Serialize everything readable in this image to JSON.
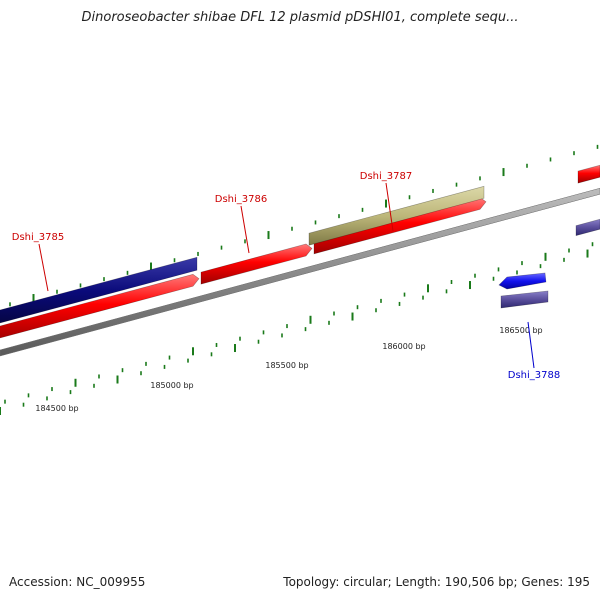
{
  "title": "Dinoroseobacter shibae DFL 12 plasmid pDSHI01, complete sequ...",
  "footer": {
    "accession": "Accession: NC_009955",
    "summary": "Topology: circular; Length: 190,506 bp; Genes: 195"
  },
  "colors": {
    "forward_gene": "#ff0000",
    "reverse_gene_dark": "#0a0a7a",
    "reverse_gene_purple": "#5a4f9c",
    "reverse_gene_blue": "#1111ee",
    "rna_gene": "#bdb77a",
    "backbone": "#8a8a8a",
    "tick_mark": "#1a7a1a",
    "label_forward": "#cc0000",
    "label_reverse": "#0000cc"
  },
  "genes": [
    {
      "label": "Dshi_3785",
      "strand": "reverse",
      "color_key": "reverse_gene_dark"
    },
    {
      "label": "Dshi_3786",
      "strand": "forward",
      "color_key": "forward_gene"
    },
    {
      "label": "Dshi_3787",
      "strand": "forward",
      "color_key": "rna_gene"
    },
    {
      "label": "Dshi_3788",
      "strand": "reverse",
      "color_key": "reverse_gene_blue"
    }
  ],
  "scale_labels": [
    "184500 bp",
    "185000 bp",
    "185500 bp",
    "186000 bp",
    "186500 bp"
  ]
}
